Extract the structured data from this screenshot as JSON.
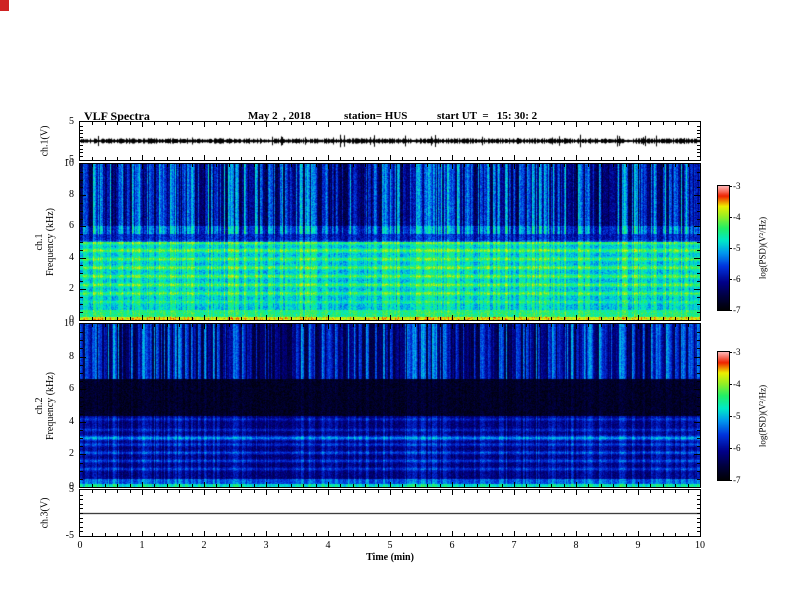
{
  "header": {
    "title": "VLF Spectra",
    "date": "May 2  , 2018",
    "station": "station= HUS",
    "start_ut": "start UT  =   15: 30: 2"
  },
  "chart_data": {
    "type": "heatmap",
    "title": "VLF Spectra",
    "x": {
      "label": "Time (min)",
      "min": 0,
      "max": 10,
      "ticks": [
        0,
        1,
        2,
        3,
        4,
        5,
        6,
        7,
        8,
        9,
        10
      ]
    },
    "colorbar": {
      "label": "log(PSD)(V²/Hz)",
      "max": -3,
      "min": -7,
      "ticks": [
        -3,
        -4,
        -5,
        -6,
        -7
      ]
    },
    "colormap": [
      {
        "t": 0.0,
        "c": "#000006"
      },
      {
        "t": 0.1,
        "c": "#00003a"
      },
      {
        "t": 0.22,
        "c": "#000088"
      },
      {
        "t": 0.35,
        "c": "#0033dd"
      },
      {
        "t": 0.46,
        "c": "#0099ee"
      },
      {
        "t": 0.56,
        "c": "#00e8c8"
      },
      {
        "t": 0.66,
        "c": "#22ee66"
      },
      {
        "t": 0.76,
        "c": "#99ee22"
      },
      {
        "t": 0.84,
        "c": "#eeee00"
      },
      {
        "t": 0.92,
        "c": "#ee2200"
      },
      {
        "t": 1.0,
        "c": "#ffb0b0"
      }
    ],
    "panels": [
      {
        "id": "ch1v",
        "kind": "waveform",
        "ylabel": "ch.1(V)",
        "ymin": -5,
        "ymax": 5,
        "yticks": [
          5,
          -5
        ],
        "yminor": 1,
        "signal_level": 0,
        "noise_amp": 2.0,
        "spike_rate": 0.05,
        "spike_amp": 5,
        "seed": 101
      },
      {
        "id": "ch1spec",
        "kind": "spectrogram",
        "ylabel": "ch.1\nFrequency (kHz)",
        "ymin": 0,
        "ymax": 10,
        "yticks": [
          10,
          8,
          6,
          4,
          2,
          0
        ],
        "yminor": 0.5,
        "base": [
          {
            "f0": 6.0,
            "f1": 10.0,
            "v": 0.13
          },
          {
            "f0": 5.0,
            "f1": 6.0,
            "v": 0.24
          },
          {
            "f0": 0.65,
            "f1": 5.0,
            "v": 0.46
          },
          {
            "f0": 0.18,
            "f1": 0.65,
            "v": 0.6
          },
          {
            "f0": 0.0,
            "f1": 0.18,
            "v": 0.78
          }
        ],
        "bands": [
          {
            "f": 1.15,
            "w": 0.07,
            "s": 0.1
          },
          {
            "f": 1.7,
            "w": 0.08,
            "s": 0.16
          },
          {
            "f": 2.25,
            "w": 0.08,
            "s": 0.17
          },
          {
            "f": 2.8,
            "w": 0.08,
            "s": 0.17
          },
          {
            "f": 3.35,
            "w": 0.08,
            "s": 0.18
          },
          {
            "f": 3.9,
            "w": 0.08,
            "s": 0.16
          },
          {
            "f": 4.45,
            "w": 0.08,
            "s": 0.18
          },
          {
            "f": 4.95,
            "w": 0.08,
            "s": 0.17
          }
        ],
        "noise": 0.13,
        "streaks": {
          "density": 0.95,
          "min": 0.05,
          "max": 0.42,
          "vis": [
            {
              "f0": 5.5,
              "f1": 10.0,
              "m": 1.0
            },
            {
              "f0": 0.65,
              "f1": 5.5,
              "m": 0.45
            },
            {
              "f0": 0.0,
              "f1": 0.65,
              "m": 0.25
            }
          ]
        },
        "seed": 202
      },
      {
        "id": "ch2spec",
        "kind": "spectrogram",
        "ylabel": "ch.2\nFrequency (kHz)",
        "ymin": 0,
        "ymax": 10,
        "yticks": [
          10,
          8,
          6,
          4,
          2,
          0
        ],
        "yminor": 0.5,
        "base": [
          {
            "f0": 6.6,
            "f1": 10.0,
            "v": 0.12
          },
          {
            "f0": 4.35,
            "f1": 6.6,
            "v": 0.05
          },
          {
            "f0": 0.5,
            "f1": 4.35,
            "v": 0.17
          },
          {
            "f0": 0.16,
            "f1": 0.5,
            "v": 0.34
          },
          {
            "f0": 0.0,
            "f1": 0.16,
            "v": 0.52
          }
        ],
        "bands": [
          {
            "f": 1.1,
            "w": 0.07,
            "s": 0.13
          },
          {
            "f": 1.6,
            "w": 0.07,
            "s": 0.14
          },
          {
            "f": 2.1,
            "w": 0.07,
            "s": 0.15
          },
          {
            "f": 2.6,
            "w": 0.07,
            "s": 0.13
          },
          {
            "f": 3.0,
            "w": 0.09,
            "s": 0.24
          },
          {
            "f": 3.5,
            "w": 0.06,
            "s": 0.1
          },
          {
            "f": 4.15,
            "w": 0.06,
            "s": 0.1
          }
        ],
        "noise": 0.1,
        "streaks": {
          "density": 0.85,
          "min": 0.05,
          "max": 0.38,
          "vis": [
            {
              "f0": 6.6,
              "f1": 10.0,
              "m": 1.0
            },
            {
              "f0": 4.35,
              "f1": 6.6,
              "m": 0.12
            },
            {
              "f0": 0.0,
              "f1": 4.35,
              "m": 0.4
            }
          ]
        },
        "seed": 303
      },
      {
        "id": "ch3v",
        "kind": "flatline",
        "ylabel": "ch.3(V)",
        "ymin": -5,
        "ymax": 5,
        "yticks": [
          5,
          -5
        ],
        "yminor": 1,
        "signal_level": 0,
        "seed": 404
      }
    ]
  }
}
